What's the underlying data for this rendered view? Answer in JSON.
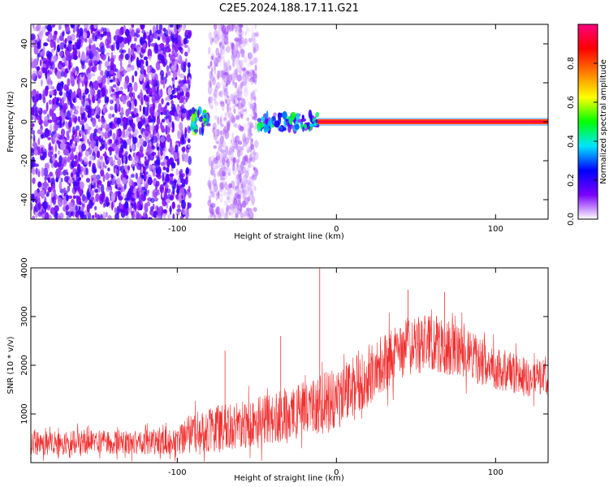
{
  "title": "C2E5.2024.188.17.11.G21",
  "chart_data": [
    {
      "type": "heatmap",
      "xlabel": "Height of straight line (km)",
      "ylabel": "Frequency (Hz)",
      "xlim": [
        -192,
        133
      ],
      "ylim": [
        -50,
        50
      ],
      "x_ticks": [
        -100,
        0,
        100
      ],
      "x_tick_labels": [
        "-100",
        "0",
        "100"
      ],
      "y_ticks": [
        -40,
        -20,
        0,
        20,
        40
      ],
      "y_tick_labels": [
        "-40",
        "-20",
        "0",
        "20",
        "40"
      ],
      "colorbar": {
        "label": "Normalized spectral amplitude",
        "range": [
          0,
          1
        ],
        "ticks": [
          0,
          0.2,
          0.4,
          0.6,
          0.8
        ],
        "tick_labels": [
          "0.0",
          "0.2",
          "0.4",
          "0.6",
          "0.8"
        ],
        "colors": [
          "#ffffff",
          "#7a00ff",
          "#0000ff",
          "#00e5ff",
          "#00ff00",
          "#ffff00",
          "#ff7f00",
          "#ff0000",
          "#ff007f"
        ]
      },
      "features": [
        {
          "x_range": [
            -192,
            -92
          ],
          "freq_range": [
            -50,
            50
          ],
          "amplitude": 0.12
        },
        {
          "x_range": [
            -92,
            -80
          ],
          "freq_range": [
            -6,
            6
          ],
          "amplitude": 0.35
        },
        {
          "x_range": [
            -80,
            -50
          ],
          "freq_range": [
            -50,
            50
          ],
          "amplitude": 0.06
        },
        {
          "x_range": [
            -50,
            -12
          ],
          "freq_range": [
            -4,
            4
          ],
          "amplitude": 0.3
        },
        {
          "x_range": [
            -12,
            133
          ],
          "freq_range": [
            -1,
            1
          ],
          "amplitude": 0.95
        }
      ]
    },
    {
      "type": "line",
      "xlabel": "Height of straight line (km)",
      "ylabel": "SNR (10 * v/v)",
      "xlim": [
        -192,
        133
      ],
      "ylim": [
        0,
        4000
      ],
      "x_ticks": [
        -100,
        0,
        100
      ],
      "x_tick_labels": [
        "-100",
        "0",
        "100"
      ],
      "y_ticks": [
        1000,
        2000,
        3000,
        4000
      ],
      "y_tick_labels": [
        "1000",
        "2000",
        "3000",
        "4000"
      ],
      "color": "#f03030",
      "envelope": {
        "x": [
          -192,
          -160,
          -130,
          -100,
          -92,
          -85,
          -75,
          -60,
          -45,
          -30,
          -15,
          0,
          15,
          30,
          45,
          60,
          75,
          90,
          105,
          120,
          133
        ],
        "mean": [
          400,
          420,
          420,
          430,
          600,
          650,
          700,
          750,
          850,
          950,
          1150,
          1300,
          1700,
          2050,
          2400,
          2450,
          2300,
          2100,
          1900,
          1750,
          1800
        ],
        "spread": [
          250,
          250,
          250,
          260,
          400,
          450,
          500,
          500,
          550,
          550,
          600,
          650,
          650,
          600,
          600,
          600,
          550,
          500,
          450,
          400,
          400
        ]
      },
      "spikes": [
        {
          "x": -10.5,
          "y": 4000
        },
        {
          "x": -35,
          "y": 2600
        },
        {
          "x": -70,
          "y": 2300
        },
        {
          "x": 45,
          "y": 3550
        },
        {
          "x": 68,
          "y": 3500
        }
      ]
    }
  ]
}
